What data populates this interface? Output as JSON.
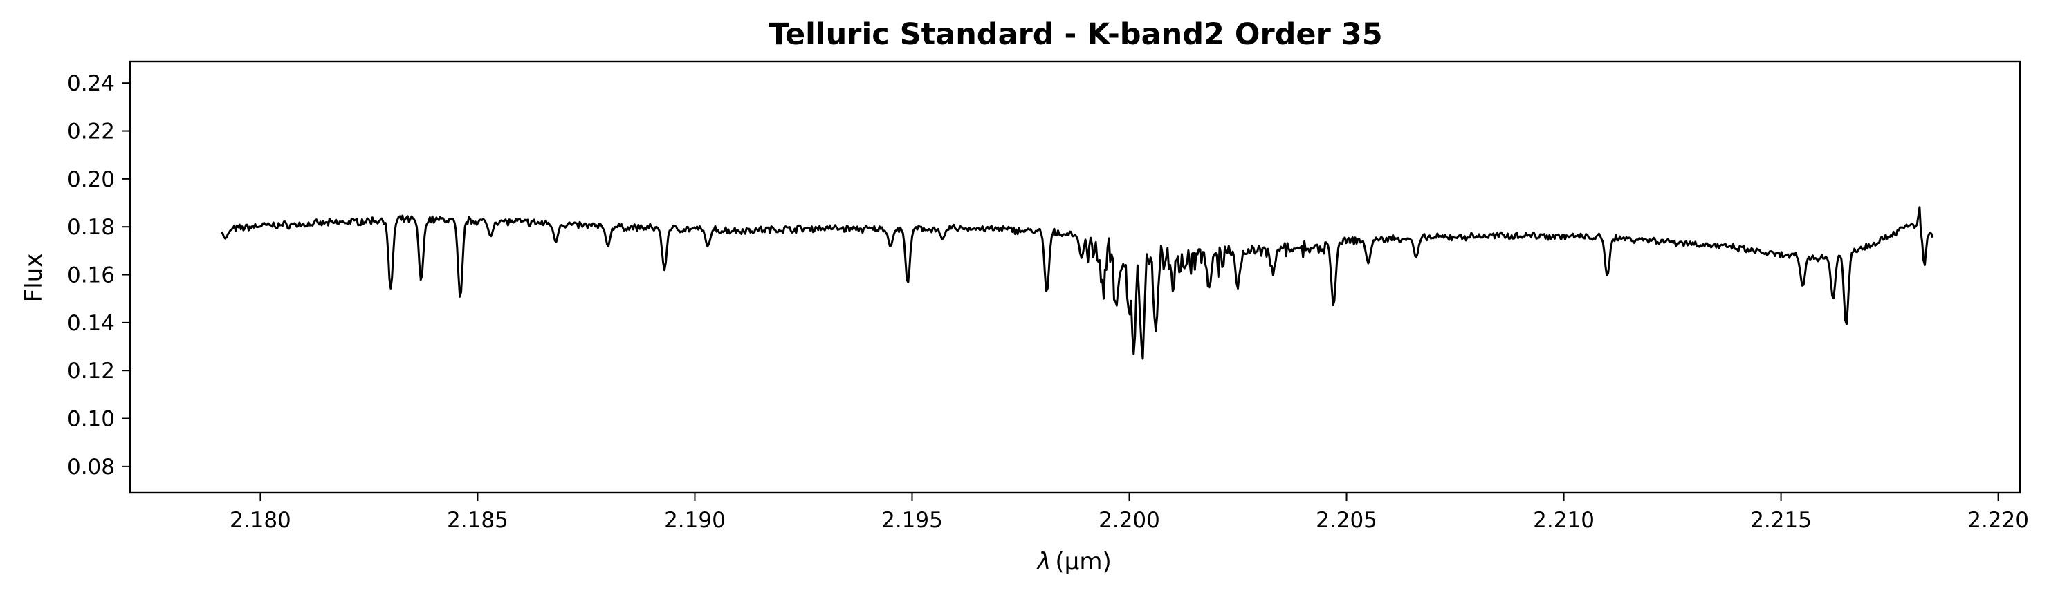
{
  "chart_data": {
    "type": "line",
    "title": "Telluric Standard - K-band2 Order 35",
    "xlabel": "λ (μm)",
    "xlabel_parts": {
      "symbol": "λ",
      "unit": "(μm)"
    },
    "ylabel": "Flux",
    "xlim": [
      2.177,
      2.2205
    ],
    "ylim": [
      0.069,
      0.249
    ],
    "xticks": [
      2.18,
      2.185,
      2.19,
      2.195,
      2.2,
      2.205,
      2.21,
      2.215,
      2.22
    ],
    "xtick_labels": [
      "2.180",
      "2.185",
      "2.190",
      "2.195",
      "2.200",
      "2.205",
      "2.210",
      "2.215",
      "2.220"
    ],
    "yticks": [
      0.08,
      0.1,
      0.12,
      0.14,
      0.16,
      0.18,
      0.2,
      0.22,
      0.24
    ],
    "ytick_labels": [
      "0.08",
      "0.10",
      "0.12",
      "0.14",
      "0.16",
      "0.18",
      "0.20",
      "0.22",
      "0.24"
    ],
    "grid": false,
    "line_color": "#000000",
    "series": [
      {
        "x_range": [
          2.1791,
          2.2185
        ],
        "continuum": [
          [
            2.1791,
            0.1785
          ],
          [
            2.18,
            0.1805
          ],
          [
            2.181,
            0.181
          ],
          [
            2.182,
            0.182
          ],
          [
            2.183,
            0.183
          ],
          [
            2.184,
            0.183
          ],
          [
            2.185,
            0.1825
          ],
          [
            2.186,
            0.182
          ],
          [
            2.187,
            0.181
          ],
          [
            2.188,
            0.18
          ],
          [
            2.189,
            0.1795
          ],
          [
            2.19,
            0.179
          ],
          [
            2.191,
            0.1785
          ],
          [
            2.192,
            0.179
          ],
          [
            2.193,
            0.1795
          ],
          [
            2.194,
            0.179
          ],
          [
            2.195,
            0.179
          ],
          [
            2.196,
            0.1795
          ],
          [
            2.197,
            0.179
          ],
          [
            2.198,
            0.178
          ],
          [
            2.199,
            0.1765
          ],
          [
            2.2,
            0.175
          ],
          [
            2.201,
            0.1745
          ],
          [
            2.202,
            0.172
          ],
          [
            2.203,
            0.172
          ],
          [
            2.204,
            0.1725
          ],
          [
            2.205,
            0.174
          ],
          [
            2.206,
            0.175
          ],
          [
            2.207,
            0.1755
          ],
          [
            2.208,
            0.176
          ],
          [
            2.209,
            0.1765
          ],
          [
            2.21,
            0.176
          ],
          [
            2.211,
            0.1755
          ],
          [
            2.212,
            0.1745
          ],
          [
            2.213,
            0.173
          ],
          [
            2.214,
            0.171
          ],
          [
            2.215,
            0.168
          ],
          [
            2.216,
            0.167
          ],
          [
            2.217,
            0.172
          ],
          [
            2.218,
            0.181
          ],
          [
            2.2185,
            0.176
          ]
        ],
        "absorption_lines": [
          [
            2.1792,
            0.175
          ],
          [
            2.183,
            0.154
          ],
          [
            2.1837,
            0.157
          ],
          [
            2.1846,
            0.1505
          ],
          [
            2.1853,
            0.176
          ],
          [
            2.1868,
            0.174
          ],
          [
            2.188,
            0.172
          ],
          [
            2.1893,
            0.162
          ],
          [
            2.1903,
            0.172
          ],
          [
            2.1945,
            0.172
          ],
          [
            2.1949,
            0.1565
          ],
          [
            2.1957,
            0.175
          ],
          [
            2.1981,
            0.1525
          ],
          [
            2.1989,
            0.167
          ],
          [
            2.1994,
            0.158
          ],
          [
            2.1997,
            0.152
          ],
          [
            2.2,
            0.147
          ],
          [
            2.2001,
            0.138
          ],
          [
            2.2003,
            0.129
          ],
          [
            2.2006,
            0.145
          ],
          [
            2.201,
            0.162
          ],
          [
            2.2018,
            0.164
          ],
          [
            2.2025,
            0.158
          ],
          [
            2.2033,
            0.163
          ],
          [
            2.2047,
            0.147
          ],
          [
            2.2055,
            0.165
          ],
          [
            2.2066,
            0.167
          ],
          [
            2.211,
            0.159
          ],
          [
            2.2155,
            0.155
          ],
          [
            2.2162,
            0.15
          ],
          [
            2.2165,
            0.1385
          ]
        ],
        "spikes": [
          [
            2.2182,
            0.1885
          ],
          [
            2.2183,
            0.164
          ]
        ]
      }
    ]
  }
}
